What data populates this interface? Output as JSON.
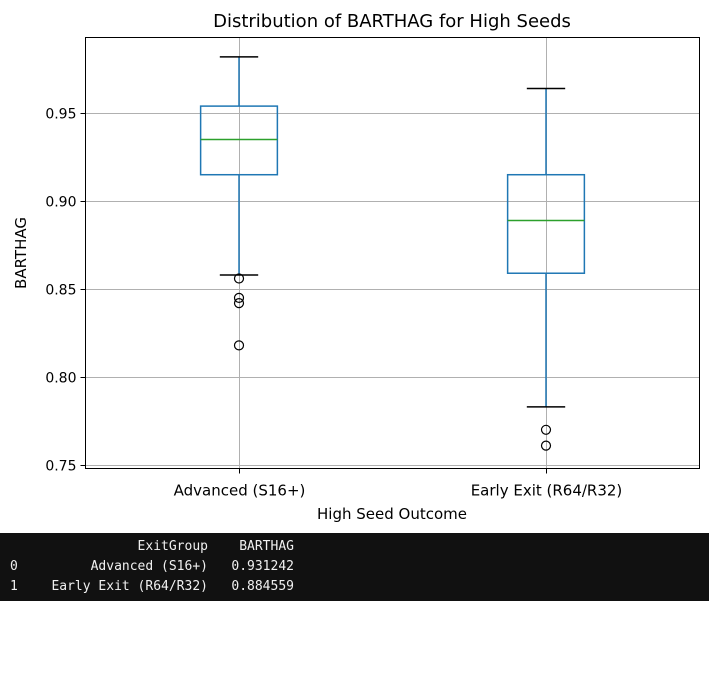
{
  "chart_data": {
    "type": "box",
    "title": "Distribution of BARTHAG for High Seeds",
    "xlabel": "High Seed Outcome",
    "ylabel": "BARTHAG",
    "ylim": [
      0.748,
      0.993
    ],
    "yticks": [
      0.75,
      0.8,
      0.85,
      0.9,
      0.95
    ],
    "ytick_labels": [
      "0.75",
      "0.80",
      "0.85",
      "0.90",
      "0.95"
    ],
    "grid": true,
    "colors": {
      "box": "#1f77b4",
      "median": "#2ca02c",
      "whisker": "#1f77b4",
      "cap": "#000000",
      "flier": "#000000",
      "grid": "#b0b0b0"
    },
    "categories": [
      "Advanced (S16+)",
      "Early Exit (R64/R32)"
    ],
    "boxes": [
      {
        "category": "Advanced (S16+)",
        "whislo": 0.858,
        "q1": 0.915,
        "median": 0.935,
        "q3": 0.954,
        "whishi": 0.982,
        "fliers": [
          0.856,
          0.845,
          0.842,
          0.818
        ]
      },
      {
        "category": "Early Exit (R64/R32)",
        "whislo": 0.783,
        "q1": 0.859,
        "median": 0.889,
        "q3": 0.915,
        "whishi": 0.964,
        "fliers": [
          0.77,
          0.761
        ]
      }
    ]
  },
  "console": {
    "header": [
      "",
      "ExitGroup",
      "BARTHAG"
    ],
    "rows": [
      [
        "0",
        "Advanced (S16+)",
        "0.931242"
      ],
      [
        "1",
        "Early Exit (R64/R32)",
        "0.884559"
      ]
    ]
  }
}
